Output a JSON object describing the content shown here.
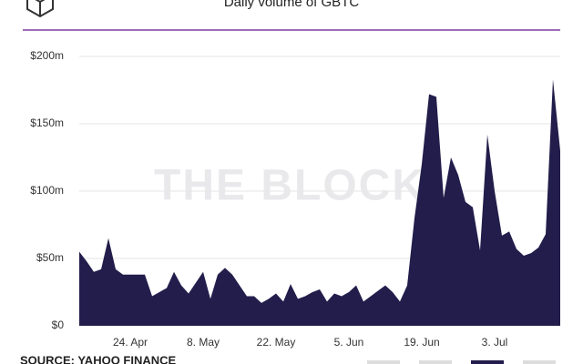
{
  "chart_data": {
    "type": "area",
    "title": "Daily volume of GBTC",
    "watermark": "THE BLOCK",
    "source": "SOURCE: YAHOO FINANCE",
    "color": "#221d4b",
    "grid": true,
    "categories": [
      null,
      null,
      null,
      null,
      null,
      null,
      null,
      "24. Apr",
      null,
      null,
      null,
      null,
      null,
      null,
      null,
      null,
      null,
      "8. May",
      null,
      null,
      null,
      null,
      null,
      null,
      null,
      null,
      null,
      "22. May",
      null,
      null,
      null,
      null,
      null,
      null,
      null,
      null,
      null,
      "5. Jun",
      null,
      null,
      null,
      null,
      null,
      null,
      null,
      null,
      null,
      "19. Jun",
      null,
      null,
      null,
      null,
      null,
      null,
      null,
      null,
      null,
      "3. Jul",
      null,
      null,
      null,
      null,
      null,
      null,
      null,
      null,
      null
    ],
    "values": [
      55,
      48,
      40,
      42,
      65,
      42,
      38,
      38,
      38,
      38,
      22,
      25,
      28,
      40,
      30,
      24,
      32,
      40,
      20,
      38,
      43,
      38,
      30,
      22,
      22,
      17,
      20,
      24,
      18,
      31,
      20,
      22,
      25,
      27,
      18,
      24,
      22,
      25,
      30,
      18,
      22,
      26,
      30,
      25,
      18,
      30,
      80,
      120,
      172,
      170,
      95,
      125,
      112,
      92,
      88,
      56,
      142,
      100,
      67,
      70,
      57,
      52,
      54,
      58,
      68,
      183,
      130
    ],
    "ylim": [
      0,
      200
    ],
    "yticks": [
      {
        "value": 0,
        "label": "$0"
      },
      {
        "value": 50,
        "label": "$50m"
      },
      {
        "value": 100,
        "label": "$100m"
      },
      {
        "value": 150,
        "label": "$150m"
      },
      {
        "value": 200,
        "label": "$200m"
      }
    ]
  }
}
